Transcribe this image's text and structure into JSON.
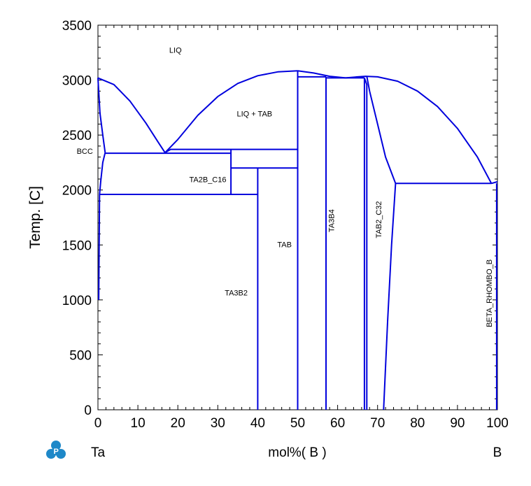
{
  "chart_data": {
    "type": "line",
    "ylabel": "Temp.  [C]",
    "xlabel": "mol%(  B  )",
    "x_left_label": "Ta",
    "x_right_label": "B",
    "xlim": [
      0,
      100
    ],
    "ylim": [
      0,
      3500
    ],
    "xticks": [
      0,
      10,
      20,
      30,
      40,
      50,
      60,
      70,
      80,
      90,
      100
    ],
    "yticks": [
      0,
      500,
      1000,
      1500,
      2000,
      2500,
      3000,
      3500
    ],
    "grid": false,
    "line_color": "#0000dd",
    "region_labels": [
      {
        "text": "LIQ",
        "x": 19.4,
        "y": 3250,
        "rotate": false
      },
      {
        "text": "LIQ + TAB",
        "x": 39.2,
        "y": 2670,
        "rotate": false
      },
      {
        "text": "BCC",
        "x": -3.3,
        "y": 2330,
        "rotate": false
      },
      {
        "text": "TA2B_C16",
        "x": 27.5,
        "y": 2070,
        "rotate": false
      },
      {
        "text": "TAB",
        "x": 46.7,
        "y": 1480,
        "rotate": false
      },
      {
        "text": "TA3B2",
        "x": 34.6,
        "y": 1040,
        "rotate": false
      },
      {
        "text": "TA3B4",
        "x": 59.1,
        "y": 1720,
        "rotate": true
      },
      {
        "text": "TAB2_C32",
        "x": 70.9,
        "y": 1730,
        "rotate": true
      },
      {
        "text": "BETA_RHOMBO_B",
        "x": 98.6,
        "y": 1060,
        "rotate": true
      }
    ],
    "series": [
      {
        "points": [
          [
            0,
            3020
          ],
          [
            4,
            2960
          ],
          [
            8,
            2810
          ],
          [
            12,
            2610
          ],
          [
            15,
            2440
          ],
          [
            16.8,
            2340
          ]
        ]
      },
      {
        "points": [
          [
            16.8,
            2340
          ],
          [
            20,
            2460
          ],
          [
            25,
            2680
          ],
          [
            30,
            2850
          ],
          [
            35,
            2970
          ],
          [
            40,
            3040
          ],
          [
            45,
            3075
          ],
          [
            50,
            3085
          ]
        ]
      },
      {
        "points": [
          [
            50,
            3085
          ],
          [
            54,
            3065
          ],
          [
            58,
            3035
          ],
          [
            62,
            3020
          ]
        ]
      },
      {
        "points": [
          [
            62,
            3020
          ],
          [
            65,
            3030
          ],
          [
            67,
            3035
          ],
          [
            70,
            3030
          ],
          [
            75,
            2990
          ],
          [
            80,
            2900
          ],
          [
            85,
            2760
          ],
          [
            90,
            2560
          ],
          [
            95,
            2300
          ],
          [
            98.5,
            2060
          ]
        ]
      },
      {
        "points": [
          [
            0,
            3020
          ],
          [
            0.5,
            2700
          ],
          [
            1.2,
            2500
          ],
          [
            1.8,
            2340
          ]
        ]
      },
      {
        "points": [
          [
            1.8,
            2340
          ],
          [
            1.2,
            2250
          ],
          [
            0.7,
            2080
          ],
          [
            0.4,
            1960
          ],
          [
            0.3,
            1500
          ],
          [
            0.2,
            1000
          ]
        ]
      },
      {
        "points": [
          [
            1.8,
            2335
          ],
          [
            33.3,
            2335
          ]
        ]
      },
      {
        "points": [
          [
            0.5,
            1960
          ],
          [
            40,
            1960
          ]
        ]
      },
      {
        "points": [
          [
            16.8,
            2340
          ],
          [
            18.2,
            2370
          ],
          [
            50,
            2370
          ]
        ]
      },
      {
        "points": [
          [
            33.3,
            2370
          ],
          [
            33.3,
            1960
          ]
        ]
      },
      {
        "points": [
          [
            33.3,
            2200
          ],
          [
            50,
            2200
          ]
        ]
      },
      {
        "points": [
          [
            40,
            2200
          ],
          [
            40,
            0
          ]
        ]
      },
      {
        "points": [
          [
            50,
            3085
          ],
          [
            50,
            0
          ]
        ]
      },
      {
        "points": [
          [
            50,
            3030
          ],
          [
            57.1,
            3030
          ]
        ]
      },
      {
        "points": [
          [
            57.1,
            3030
          ],
          [
            57.1,
            0
          ]
        ]
      },
      {
        "points": [
          [
            57.1,
            3020
          ],
          [
            66.7,
            3020
          ]
        ]
      },
      {
        "points": [
          [
            66.7,
            3020
          ],
          [
            66.7,
            0
          ]
        ]
      },
      {
        "points": [
          [
            66.7,
            3020
          ],
          [
            67.3,
            2960
          ],
          [
            67.3,
            0
          ]
        ]
      },
      {
        "points": [
          [
            67.3,
            3035
          ],
          [
            68,
            2900
          ],
          [
            70,
            2600
          ],
          [
            72,
            2300
          ],
          [
            74.5,
            2060
          ]
        ]
      },
      {
        "points": [
          [
            74.5,
            2060
          ],
          [
            73.5,
            1500
          ],
          [
            72.5,
            800
          ],
          [
            71.5,
            0
          ]
        ]
      },
      {
        "points": [
          [
            74.5,
            2060
          ],
          [
            98.5,
            2060
          ]
        ]
      },
      {
        "points": [
          [
            98.5,
            2060
          ],
          [
            100,
            2075
          ]
        ]
      },
      {
        "points": [
          [
            99.8,
            2060
          ],
          [
            99.8,
            0
          ]
        ]
      }
    ]
  }
}
